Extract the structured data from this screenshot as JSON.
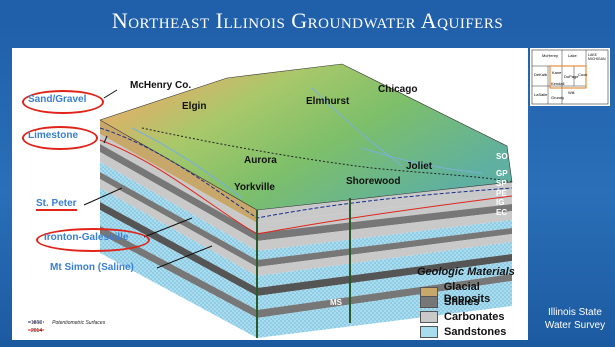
{
  "title": "Northeast Illinois Groundwater Aquifers",
  "labels": {
    "mchenry": "McHenry Co.",
    "elgin": "Elgin",
    "elmhurst": "Elmhurst",
    "chicago": "Chicago",
    "aurora": "Aurora",
    "yorkville": "Yorkville",
    "shorewood": "Shorewood",
    "joliet": "Joliet"
  },
  "aquifers": {
    "sand_gravel": "Sand/Gravel",
    "limestone": "Limestone",
    "st_peter": "St. Peter",
    "ironton": "Ironton-Galesville",
    "mt_simon": "Mt Simon (Saline)"
  },
  "units": [
    "SO",
    "MQ",
    "GP",
    "SP",
    "PE",
    "IG",
    "EC",
    "MS"
  ],
  "legend": {
    "title": "Geologic Materials",
    "items": [
      {
        "label": "Glacial Deposits",
        "color": "#c8a86a"
      },
      {
        "label": "Shales",
        "color": "#777777"
      },
      {
        "label": "Carbonates",
        "color": "#c9c9c9"
      },
      {
        "label": "Sandstones",
        "color": "#a8dcef"
      }
    ]
  },
  "potentiometric": {
    "years": [
      "1863",
      "2014"
    ],
    "caption": "Potentiometric Surfaces",
    "colors": [
      "#1a2f8a",
      "#e0241a"
    ]
  },
  "source": "Illinois State Water Survey",
  "inset_map": {
    "counties": [
      "McHenry",
      "Lake",
      "LAKE MICHIGAN",
      "DeKalb",
      "Kane",
      "DuPage",
      "Cook",
      "Kendall",
      "Will",
      "LaSalle",
      "Grundy"
    ]
  }
}
